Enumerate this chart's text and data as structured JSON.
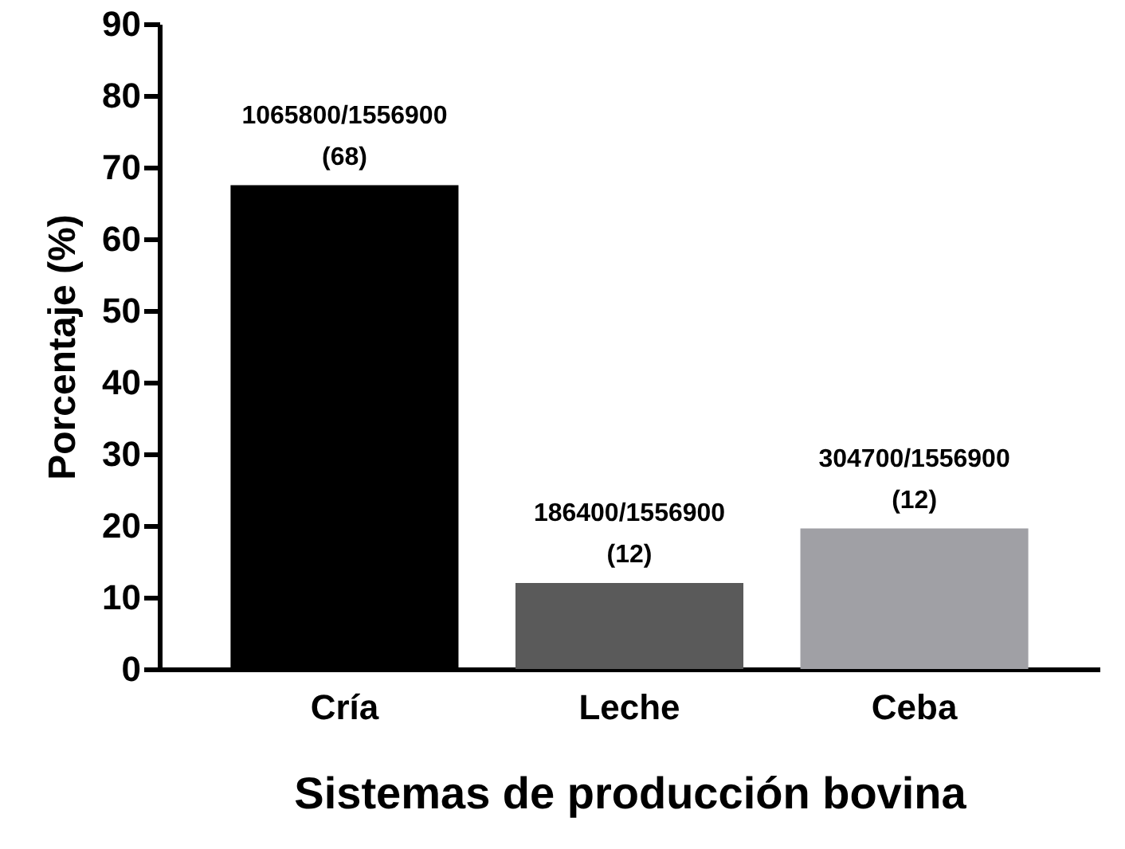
{
  "chart_data": {
    "type": "bar",
    "categories": [
      "Cría",
      "Leche",
      "Ceba"
    ],
    "values": [
      67.5,
      12,
      19.6
    ],
    "colors": [
      "#000000",
      "#5a5a5a",
      "#a0a0a5"
    ],
    "value_labels": [
      "1065800/1556900\n(68)",
      "186400/1556900\n(12)",
      "304700/1556900\n(12)"
    ],
    "xlabel": "Sistemas de producción  bovina",
    "ylabel": "Porcentaje (%)",
    "ylim": [
      0,
      90
    ],
    "yticks": [
      0,
      10,
      20,
      30,
      40,
      50,
      60,
      70,
      80,
      90
    ],
    "grid": false
  }
}
